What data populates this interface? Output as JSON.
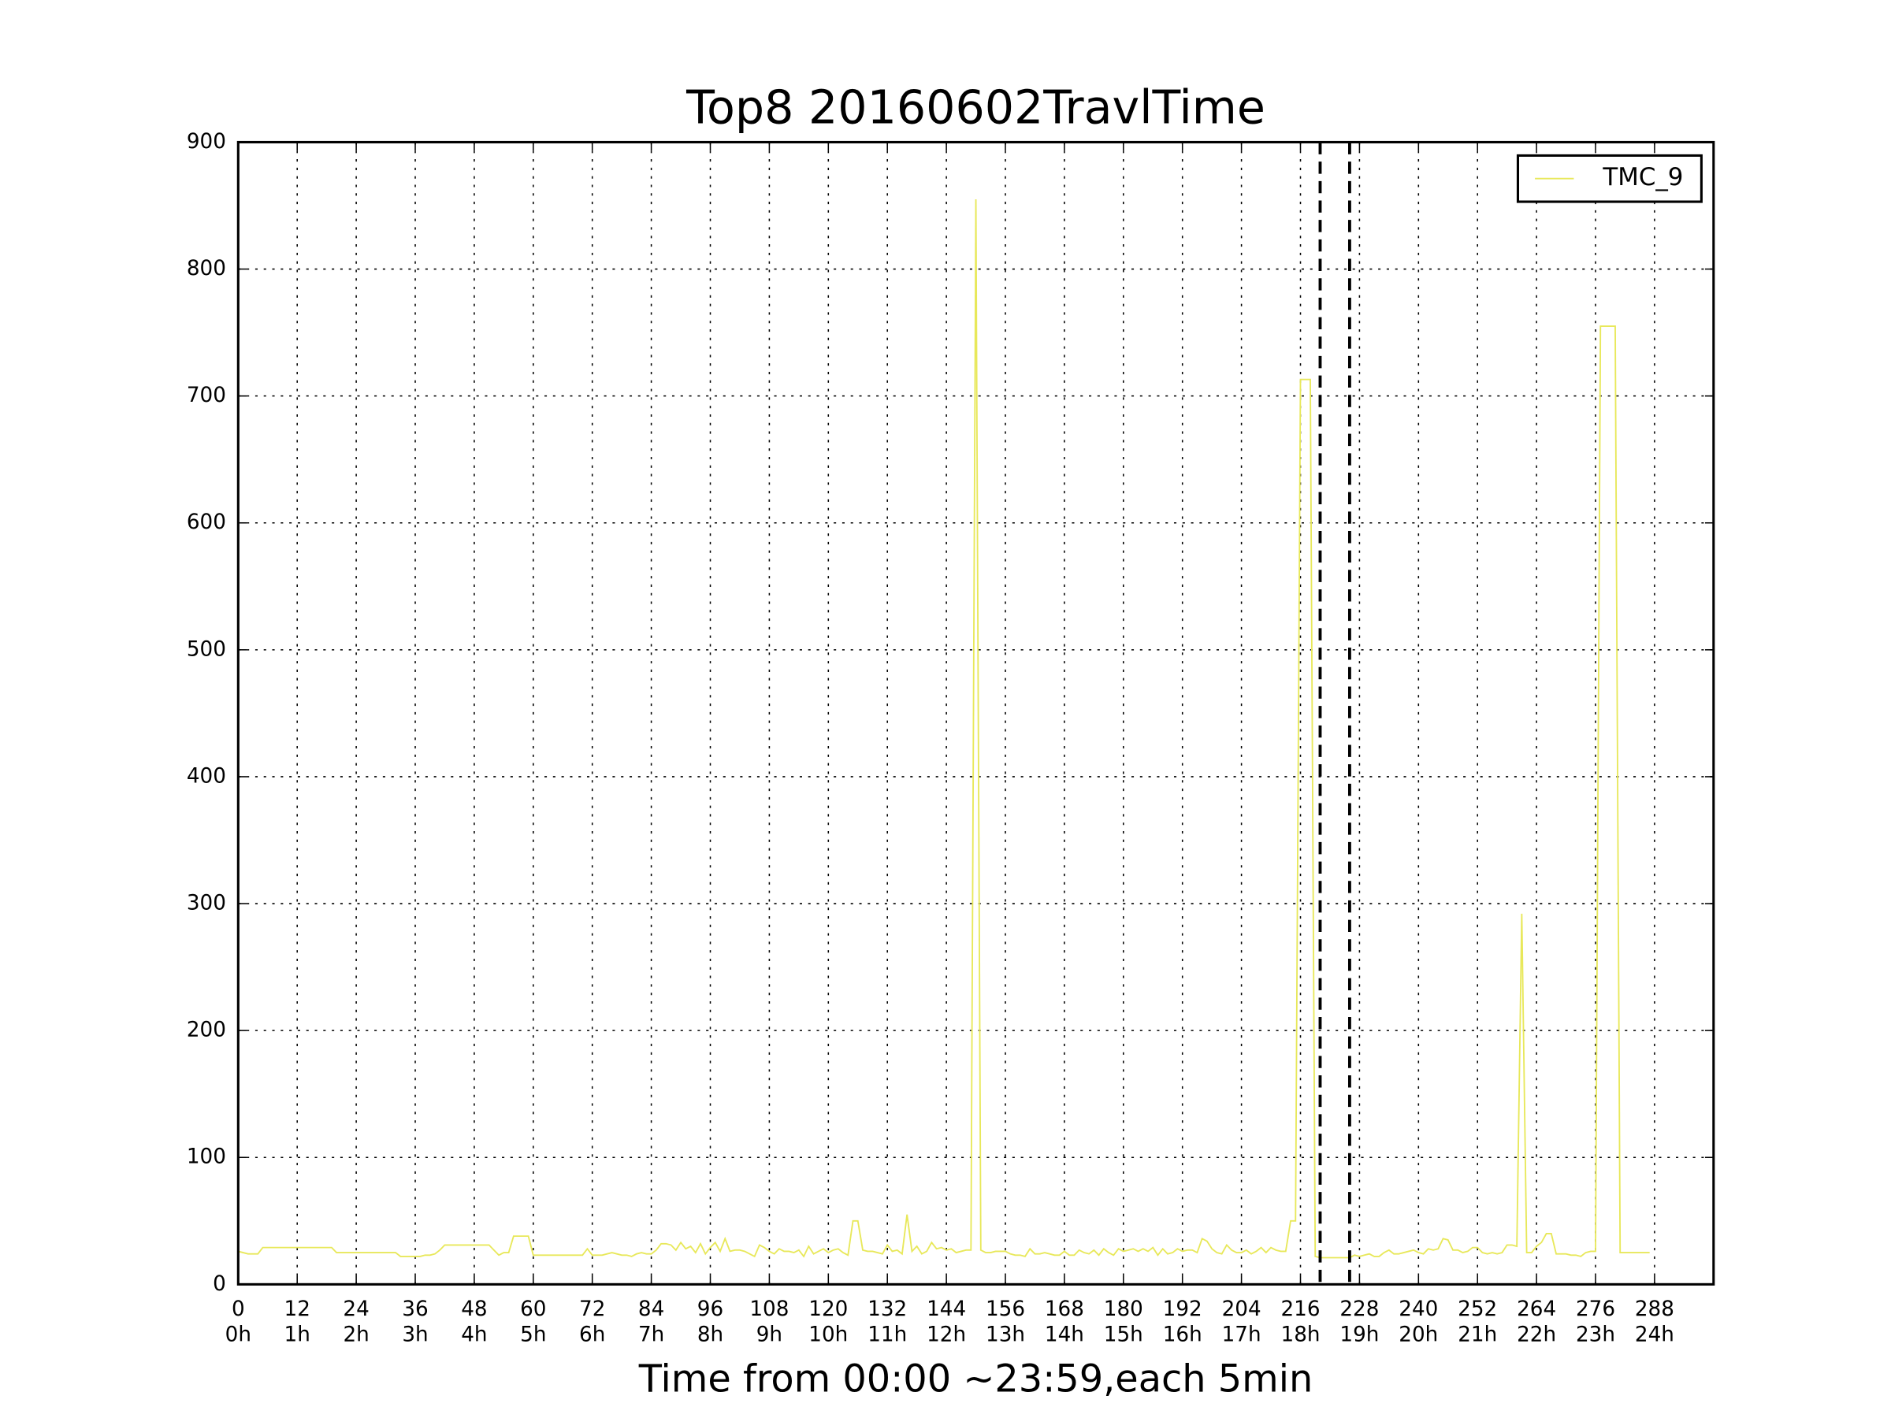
{
  "chart_data": {
    "type": "line",
    "title": "Top8 20160602TravlTime",
    "x_label": "Time from 00:00 ~23:59,each 5min",
    "xlim": [
      0,
      300
    ],
    "ylim": [
      0,
      900
    ],
    "xticks": [
      0,
      12,
      24,
      36,
      48,
      60,
      72,
      84,
      96,
      108,
      120,
      132,
      144,
      156,
      168,
      180,
      192,
      204,
      216,
      228,
      240,
      252,
      264,
      276,
      288
    ],
    "xtick_hours": [
      "0h",
      "1h",
      "2h",
      "3h",
      "4h",
      "5h",
      "6h",
      "7h",
      "8h",
      "9h",
      "10h",
      "11h",
      "12h",
      "13h",
      "14h",
      "15h",
      "16h",
      "17h",
      "18h",
      "19h",
      "20h",
      "21h",
      "22h",
      "23h",
      "24h"
    ],
    "yticks": [
      0,
      100,
      200,
      300,
      400,
      500,
      600,
      700,
      800,
      900
    ],
    "grid": true,
    "legend": "upper right",
    "vlines": [
      220,
      226
    ],
    "series": [
      {
        "name": "TMC_9",
        "color": "#e8e85a",
        "values": [
          26,
          25,
          24,
          24,
          24,
          29,
          29,
          29,
          29,
          29,
          29,
          29,
          29,
          29,
          29,
          29,
          29,
          29,
          29,
          29,
          25,
          25,
          25,
          25,
          25,
          25,
          25,
          25,
          25,
          25,
          25,
          25,
          25,
          22,
          22,
          22,
          22,
          22,
          23,
          23,
          24,
          27,
          31,
          31,
          31,
          31,
          31,
          31,
          31,
          31,
          31,
          31,
          27,
          23,
          25,
          25,
          38,
          38,
          38,
          38,
          23,
          23,
          23,
          23,
          23,
          23,
          23,
          23,
          23,
          23,
          23,
          28,
          23,
          23,
          23,
          24,
          25,
          24,
          23,
          23,
          22,
          24,
          25,
          24,
          24,
          27,
          32,
          32,
          31,
          27,
          33,
          28,
          30,
          25,
          32,
          24,
          29,
          33,
          26,
          36,
          26,
          27,
          27,
          26,
          24,
          22,
          31,
          29,
          26,
          24,
          28,
          26,
          26,
          25,
          27,
          22,
          30,
          24,
          26,
          28,
          25,
          27,
          28,
          25,
          23,
          50,
          50,
          27,
          26,
          26,
          25,
          24,
          31,
          26,
          27,
          24,
          55,
          26,
          30,
          24,
          26,
          33,
          28,
          29,
          27,
          28,
          25,
          26,
          27,
          27,
          855,
          27,
          25,
          25,
          26,
          26,
          26,
          24,
          23,
          23,
          22,
          28,
          24,
          24,
          25,
          24,
          23,
          23,
          26,
          23,
          23,
          27,
          25,
          24,
          27,
          23,
          28,
          25,
          23,
          28,
          26,
          27,
          28,
          26,
          28,
          26,
          29,
          23,
          28,
          24,
          25,
          28,
          26,
          27,
          27,
          25,
          36,
          34,
          28,
          25,
          24,
          31,
          27,
          25,
          25,
          27,
          24,
          26,
          29,
          25,
          29,
          27,
          26,
          26,
          50,
          50,
          713,
          713,
          713,
          22,
          21,
          21,
          21,
          21,
          21,
          21,
          21,
          23,
          22,
          23,
          24,
          22,
          22,
          25,
          27,
          24,
          24,
          25,
          26,
          27,
          25,
          24,
          28,
          27,
          28,
          36,
          35,
          27,
          27,
          25,
          26,
          29,
          29,
          25,
          24,
          25,
          24,
          25,
          31,
          31,
          30,
          292,
          25,
          25,
          30,
          33,
          40,
          40,
          24,
          24,
          24,
          23,
          23,
          22,
          25,
          26,
          26,
          755,
          755,
          755,
          755,
          25,
          25,
          25,
          25,
          25,
          25,
          25
        ]
      }
    ]
  }
}
